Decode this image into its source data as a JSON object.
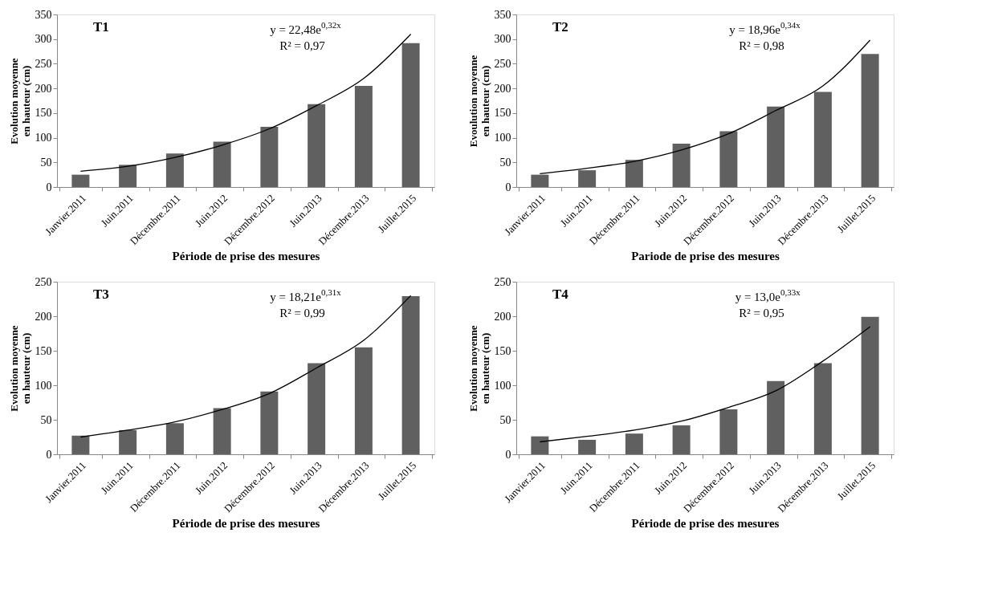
{
  "chart_data": [
    {
      "type": "bar",
      "title": "T1",
      "xlabel": "Période de prise des mesures",
      "ylabel": "Evolution  moyenne\nen hauteur (cm)",
      "categories": [
        "Janvier.2011",
        "Juin.2011",
        "Décembre.2011",
        "Juin.2012",
        "Décembre.2012",
        "Juin.2013",
        "Décembre.2013",
        "Juillet.2015"
      ],
      "series": [
        {
          "type": "bar",
          "color": "#606060",
          "values": [
            25,
            45,
            68,
            92,
            122,
            168,
            205,
            292
          ]
        },
        {
          "type": "line",
          "color": "#000000",
          "values": [
            32,
            42,
            60,
            85,
            118,
            165,
            220,
            310
          ]
        }
      ],
      "ylim": [
        0,
        350
      ],
      "yticks": [
        0,
        50,
        100,
        150,
        200,
        250,
        300,
        350
      ],
      "grid": false,
      "legend": false,
      "annotations": [
        "y = 22,48e$^{0,32x}$",
        "R² = 0,97"
      ]
    },
    {
      "type": "bar",
      "title": "T2",
      "xlabel": "Pariode de prise des mesures",
      "ylabel": "Evoulution  moyenne\nen hauteur (cm)",
      "categories": [
        "Janvier.2011",
        "Juin.2011",
        "Décembre.2011",
        "Juin.2012",
        "Décembre.2012",
        "Juin.2013",
        "Décembre.2013",
        "Juillet.2015"
      ],
      "series": [
        {
          "type": "bar",
          "color": "#606060",
          "values": [
            25,
            34,
            55,
            88,
            113,
            163,
            193,
            270
          ]
        },
        {
          "type": "line",
          "color": "#000000",
          "values": [
            27,
            38,
            52,
            75,
            108,
            155,
            205,
            298
          ]
        }
      ],
      "ylim": [
        0,
        350
      ],
      "yticks": [
        0,
        50,
        100,
        150,
        200,
        250,
        300,
        350
      ],
      "grid": false,
      "legend": false,
      "annotations": [
        "y = 18,96e$^{0,34x}$",
        "R² = 0,98"
      ]
    },
    {
      "type": "bar",
      "title": "T3",
      "xlabel": "Période de prise des mesures",
      "ylabel": "Evolution moyenne\nen hauteur (cm)",
      "categories": [
        "Janvier.2011",
        "Juin.2011",
        "Décembre.2011",
        "Juin.2012",
        "Décembre.2012",
        "Juin.2013",
        "Décembre.2013",
        "Juillet.2015"
      ],
      "series": [
        {
          "type": "bar",
          "color": "#606060",
          "values": [
            27,
            35,
            45,
            67,
            91,
            132,
            155,
            229
          ]
        },
        {
          "type": "line",
          "color": "#000000",
          "values": [
            25,
            35,
            47,
            65,
            88,
            125,
            165,
            230
          ]
        }
      ],
      "ylim": [
        0,
        250
      ],
      "yticks": [
        0,
        50,
        100,
        150,
        200,
        250
      ],
      "grid": false,
      "legend": false,
      "annotations": [
        "y = 18,21e$^{0,31x}$",
        "R² = 0,99"
      ]
    },
    {
      "type": "bar",
      "title": "T4",
      "xlabel": "Période de prise des mesures",
      "ylabel": "Evolution moyenne\nen hauteur (cm)",
      "categories": [
        "Janvier.2011",
        "Juin.2011",
        "Décembre.2011",
        "Juin.2012",
        "Décembre.2012",
        "Juin.2013",
        "Décembre.2013",
        "Juillet.2015"
      ],
      "series": [
        {
          "type": "bar",
          "color": "#606060",
          "values": [
            26,
            21,
            30,
            42,
            65,
            106,
            132,
            199
          ]
        },
        {
          "type": "line",
          "color": "#000000",
          "values": [
            18,
            26,
            35,
            48,
            68,
            92,
            135,
            185
          ]
        }
      ],
      "ylim": [
        0,
        250
      ],
      "yticks": [
        0,
        50,
        100,
        150,
        200,
        250
      ],
      "grid": false,
      "legend": false,
      "annotations": [
        "y = 13,0e$^{0,33x}$",
        "R² = 0,95"
      ]
    }
  ]
}
